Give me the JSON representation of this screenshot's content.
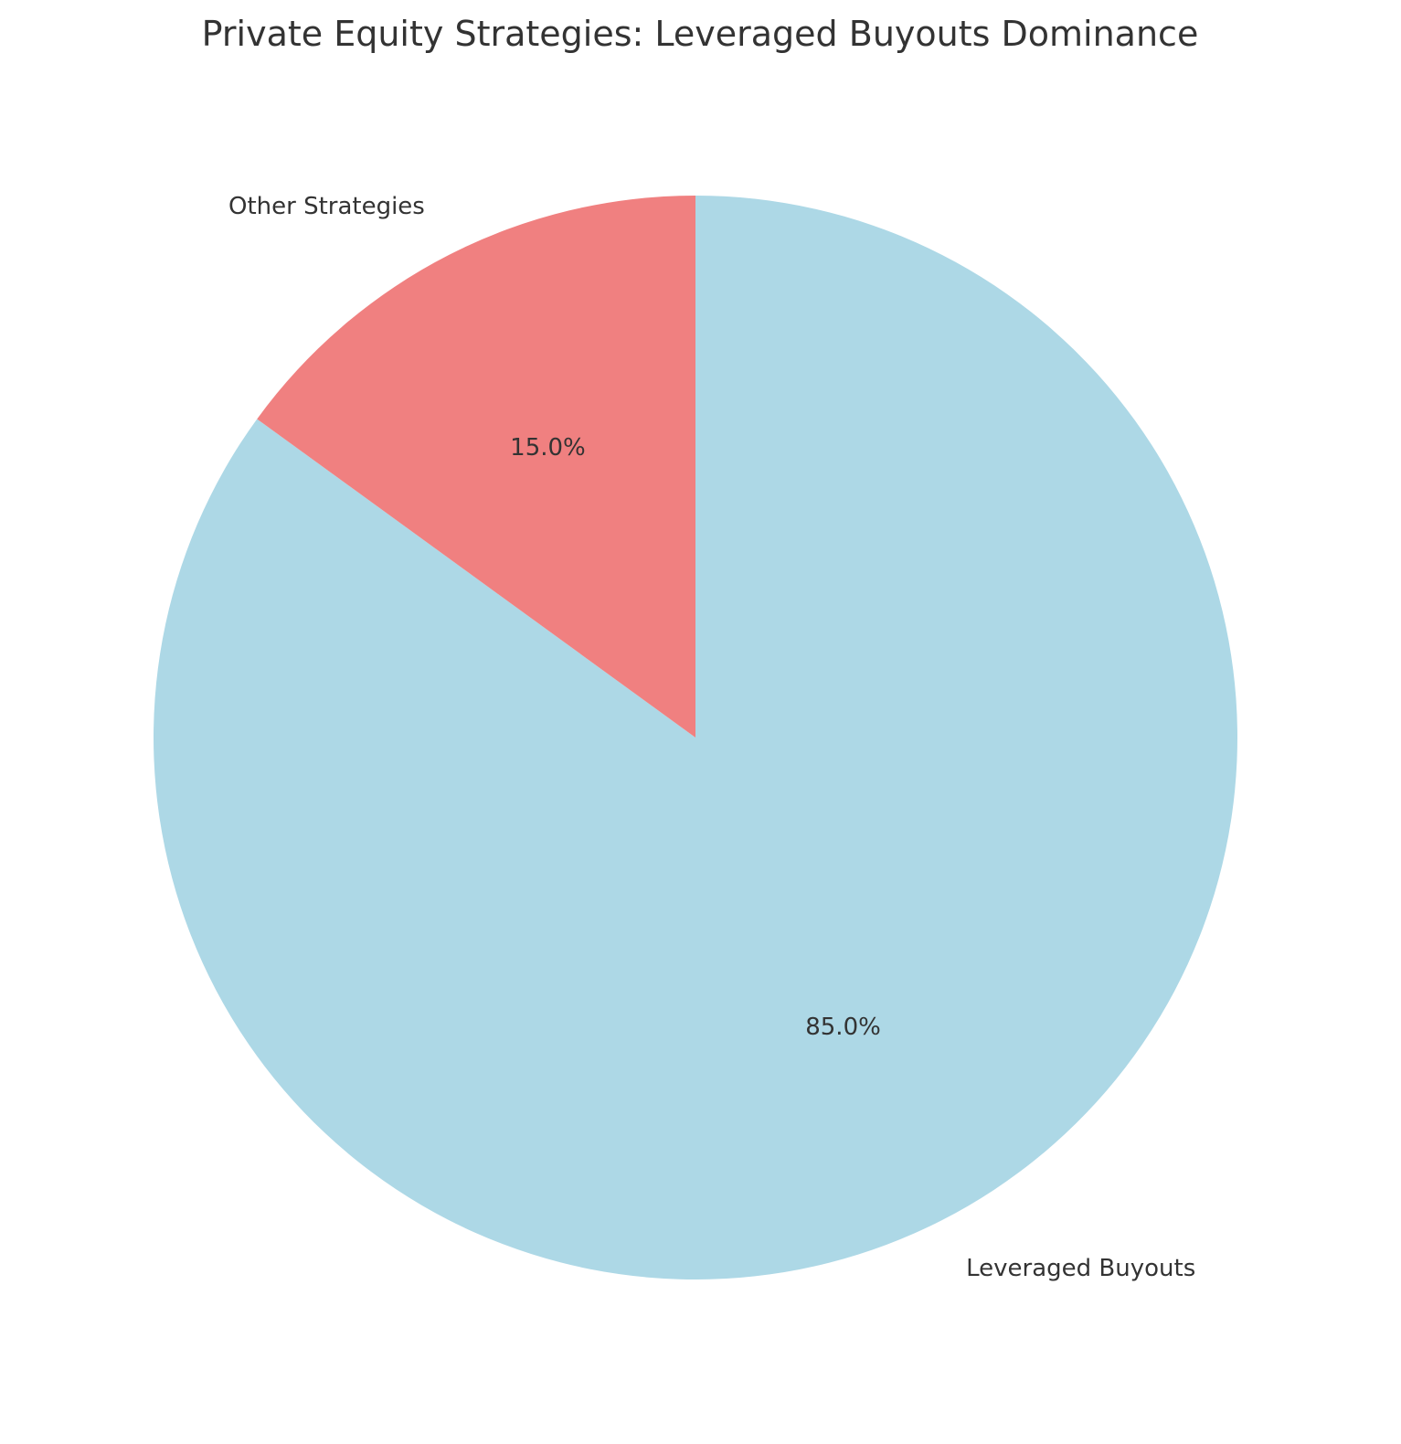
{
  "chart_data": {
    "type": "pie",
    "title": "Private Equity Strategies: Leveraged Buyouts Dominance",
    "labels": [
      "Leveraged Buyouts",
      "Other Strategies"
    ],
    "values": [
      85.0,
      15.0
    ],
    "pct_labels": [
      "85.0%",
      "15.0%"
    ],
    "colors": [
      "#add8e6",
      "#f08080"
    ],
    "start_angle_deg": 90,
    "direction": "clockwise",
    "legend": "none"
  }
}
